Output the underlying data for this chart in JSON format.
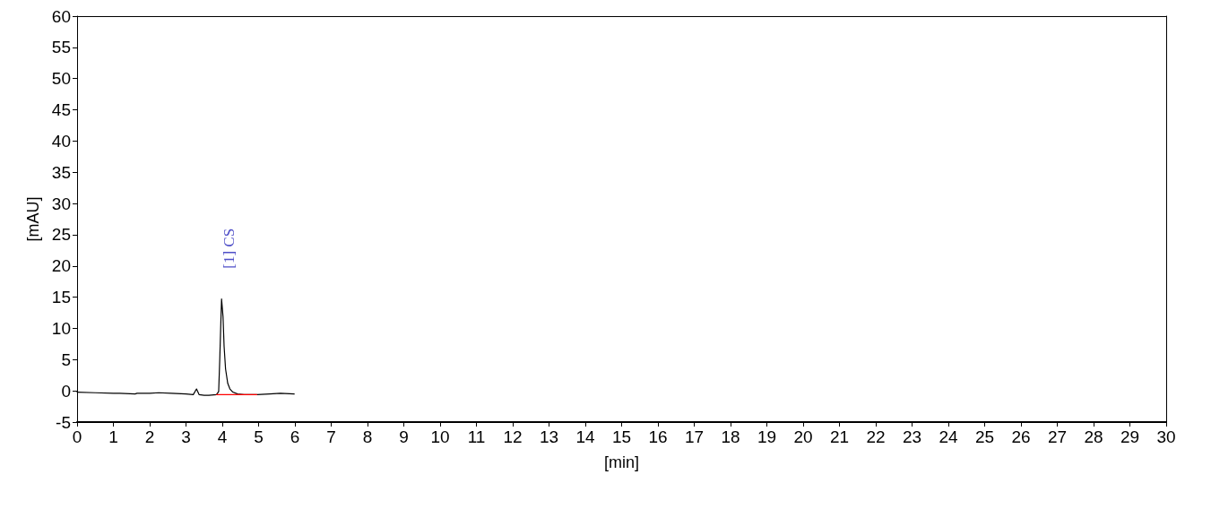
{
  "chart_data": {
    "type": "line",
    "xlabel": "[min]",
    "ylabel": "[mAU]",
    "xlim": [
      0,
      30
    ],
    "xticks": [
      0,
      1,
      2,
      3,
      4,
      5,
      6,
      7,
      8,
      9,
      10,
      11,
      12,
      13,
      14,
      15,
      16,
      17,
      18,
      19,
      20,
      21,
      22,
      23,
      24,
      25,
      26,
      27,
      28,
      29,
      30
    ],
    "ylim": [
      -5,
      60
    ],
    "yticks": [
      -5,
      0,
      5,
      10,
      15,
      20,
      25,
      30,
      35,
      40,
      45,
      50,
      55,
      60
    ],
    "series": [
      {
        "color": "#000000",
        "x": [
          0,
          0.5,
          1.0,
          1.17,
          1.6,
          1.65,
          2.0,
          2.25,
          2.6,
          3.0,
          3.2,
          3.29,
          3.36,
          3.5,
          3.63,
          3.84,
          3.9,
          3.93,
          3.96,
          3.98,
          4.02,
          4.05,
          4.09,
          4.15,
          4.21,
          4.29,
          4.42,
          4.6,
          4.95,
          5.3,
          5.6,
          5.98
        ],
        "values": [
          -0.2,
          -0.3,
          -0.4,
          -0.4,
          -0.5,
          -0.4,
          -0.4,
          -0.3,
          -0.4,
          -0.5,
          -0.6,
          0.3,
          -0.6,
          -0.7,
          -0.7,
          -0.6,
          -0.1,
          5.0,
          11.0,
          14.7,
          11.9,
          7.1,
          3.5,
          1.2,
          0.3,
          -0.2,
          -0.5,
          -0.6,
          -0.6,
          -0.5,
          -0.4,
          -0.5
        ]
      },
      {
        "color": "#ff0000",
        "x": [
          3.84,
          4.95
        ],
        "values": [
          -0.6,
          -0.6
        ]
      }
    ],
    "annotations": [
      {
        "text": "[1] CS",
        "x": 3.98,
        "y": 14.7
      }
    ],
    "marker": "none",
    "line_style": "solid"
  }
}
